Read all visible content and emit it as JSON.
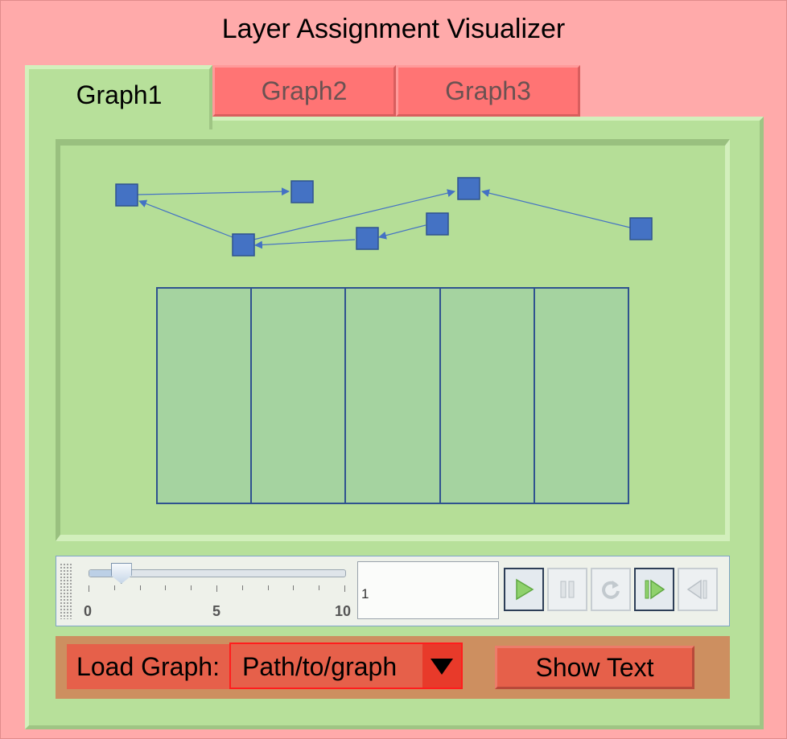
{
  "window": {
    "title": "Layer Assignment Visualizer"
  },
  "tabs": [
    {
      "label": "Graph1",
      "active": true
    },
    {
      "label": "Graph2",
      "active": false
    },
    {
      "label": "Graph3",
      "active": false
    }
  ],
  "graph": {
    "node_color": "#4472c4",
    "edge_color": "#4472c4",
    "layer_count": 5,
    "layer_color": "#a5d3a0"
  },
  "player": {
    "slider": {
      "min": 0,
      "max": 10,
      "value": 1,
      "tick_labels": [
        "0",
        "5",
        "10"
      ]
    },
    "frame_value": "1",
    "buttons": [
      {
        "icon": "play-icon",
        "enabled": true
      },
      {
        "icon": "pause-icon",
        "enabled": false
      },
      {
        "icon": "reset-icon",
        "enabled": false
      },
      {
        "icon": "step-forward-icon",
        "enabled": true
      },
      {
        "icon": "step-back-icon",
        "enabled": false
      }
    ]
  },
  "controls": {
    "load_graph_label": "Load Graph:",
    "path_value": "Path/to/graph",
    "show_text_label": "Show Text"
  },
  "colors": {
    "window_bg": "#ffaaaa",
    "panel_bg": "#b7e09a",
    "tab_inactive": "#ff7474",
    "bottom_bar": "#cd8f60",
    "button_bg": "#e6604a"
  }
}
